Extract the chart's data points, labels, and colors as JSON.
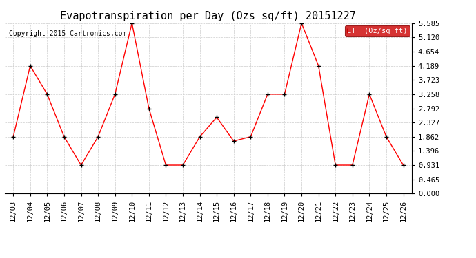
{
  "title": "Evapotranspiration per Day (Ozs sq/ft) 20151227",
  "copyright": "Copyright 2015 Cartronics.com",
  "legend_label": "ET  (0z/sq ft)",
  "dates": [
    "12/03",
    "12/04",
    "12/05",
    "12/06",
    "12/07",
    "12/08",
    "12/09",
    "12/10",
    "12/11",
    "12/12",
    "12/13",
    "12/14",
    "12/15",
    "12/16",
    "12/17",
    "12/18",
    "12/19",
    "12/20",
    "12/21",
    "12/22",
    "12/23",
    "12/24",
    "12/25",
    "12/26"
  ],
  "values": [
    1.862,
    4.189,
    3.258,
    1.862,
    0.931,
    1.862,
    3.258,
    5.585,
    2.792,
    0.931,
    0.931,
    1.862,
    2.5,
    1.72,
    1.862,
    3.258,
    3.258,
    5.585,
    4.189,
    0.931,
    0.931,
    3.258,
    1.862,
    0.931
  ],
  "yticks": [
    0.0,
    0.465,
    0.931,
    1.396,
    1.862,
    2.327,
    2.792,
    3.258,
    3.723,
    4.189,
    4.654,
    5.12,
    5.585
  ],
  "ymin": 0.0,
  "ymax": 5.585,
  "line_color": "red",
  "marker_color": "black",
  "bg_color": "#ffffff",
  "plot_bg_color": "#ffffff",
  "legend_bg": "#cc0000",
  "legend_text_color": "white",
  "grid_color": "#cccccc",
  "title_fontsize": 11,
  "tick_fontsize": 7.5,
  "copyright_fontsize": 7
}
